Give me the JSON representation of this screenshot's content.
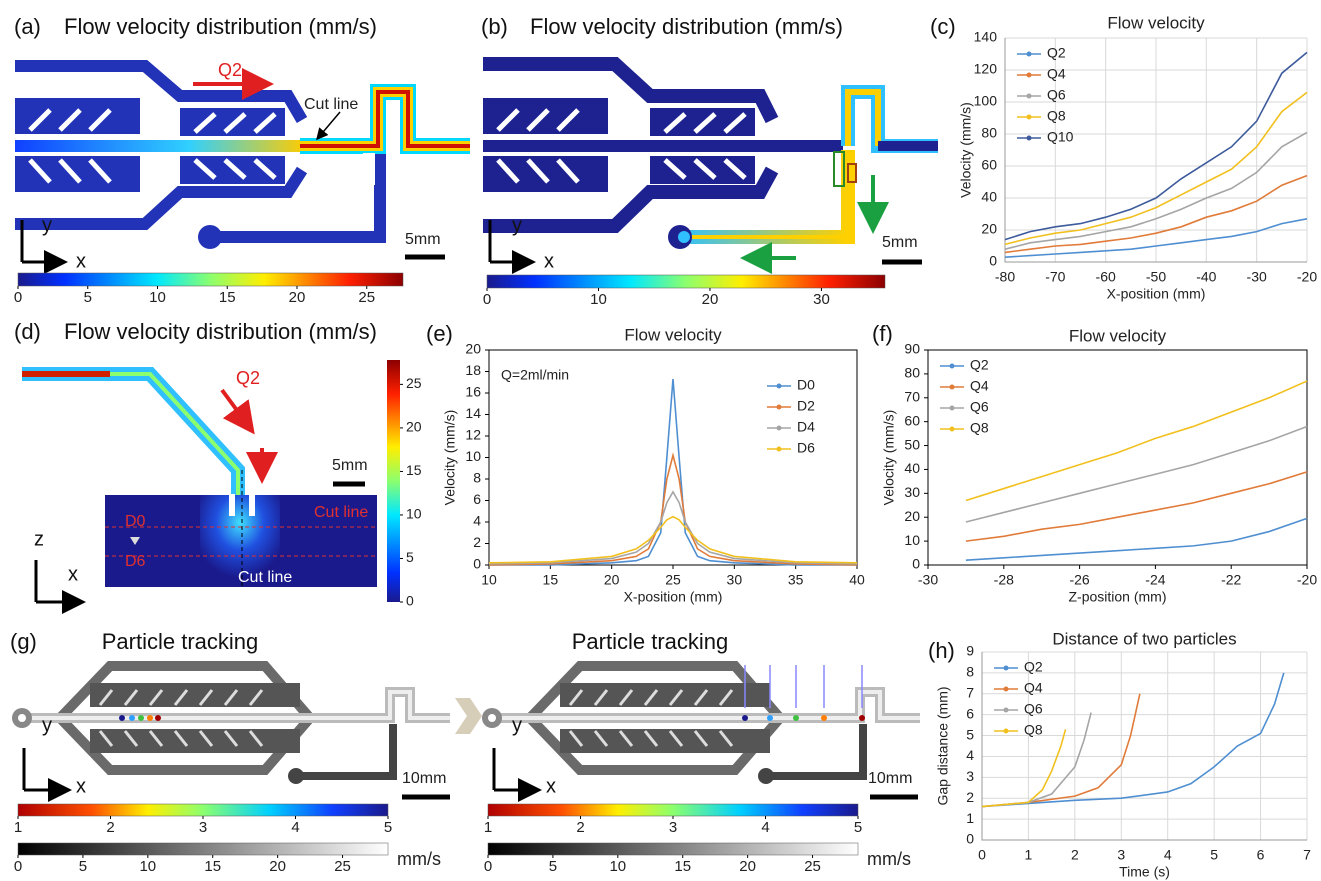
{
  "panels": {
    "a": {
      "label": "(a)",
      "title": "Flow velocity distribution (mm/s)",
      "flow": "Q2",
      "cut_line": "Cut line",
      "scale": "5mm",
      "axis_y": "y",
      "axis_x": "x",
      "colorbar": {
        "clim": [
          0,
          27.6
        ],
        "ticks": [
          0,
          5,
          10,
          15,
          20,
          25
        ]
      }
    },
    "b": {
      "label": "(b)",
      "title": "Flow velocity distribution (mm/s)",
      "scale": "5mm",
      "axis_y": "y",
      "axis_x": "x",
      "colorbar": {
        "clim": [
          0,
          35.7
        ],
        "ticks": [
          0,
          10,
          20,
          30
        ]
      }
    },
    "d": {
      "label": "(d)",
      "title": "Flow velocity distribution (mm/s)",
      "flow": "Q2",
      "scale": "5mm",
      "depths": [
        "D0",
        "D6"
      ],
      "cut_lines": [
        "Cut line",
        "Cut line"
      ],
      "axis_z": "z",
      "axis_x": "x",
      "colorbar": {
        "clim": [
          0,
          27.8
        ],
        "ticks": [
          0,
          5,
          10,
          15,
          20,
          25
        ]
      }
    },
    "g": {
      "label": "(g)",
      "views": [
        {
          "title": "Particle tracking",
          "scale": "10mm",
          "axis_y": "y",
          "axis_x": "x",
          "colorbar": {
            "clim": [
              1,
              5
            ],
            "ticks": [
              1,
              2,
              3,
              4,
              5
            ]
          },
          "gray_colorbar": {
            "clim": [
              0,
              28.5
            ],
            "ticks": [
              0,
              5,
              10,
              15,
              20,
              25
            ]
          },
          "unit": "mm/s"
        },
        {
          "title": "Particle tracking",
          "scale": "10mm",
          "axis_y": "y",
          "axis_x": "x",
          "colorbar": {
            "clim": [
              1,
              5
            ],
            "ticks": [
              1,
              2,
              3,
              4,
              5
            ]
          },
          "gray_colorbar": {
            "clim": [
              0,
              28.5
            ],
            "ticks": [
              0,
              5,
              10,
              15,
              20,
              25
            ]
          },
          "unit": "mm/s"
        }
      ]
    }
  },
  "chart_data": [
    {
      "type": "line",
      "label": "(c)",
      "title": "Flow velocity",
      "xlabel": "X-position (mm)",
      "ylabel": "Velocity (mm/s)",
      "xlim": [
        -80,
        -20
      ],
      "ylim": [
        0,
        140
      ],
      "xticks": [
        -80,
        -70,
        -60,
        -50,
        -40,
        -30,
        -20
      ],
      "yticks": [
        0,
        20,
        40,
        60,
        80,
        100,
        120,
        140
      ],
      "grid": true,
      "legend": "upper left",
      "x": [
        -80,
        -75,
        -70,
        -65,
        -60,
        -55,
        -50,
        -45,
        -40,
        -35,
        -30,
        -25,
        -20
      ],
      "series": [
        {
          "name": "Q2",
          "color": "#4f8fd1",
          "values": [
            3,
            4,
            5,
            6,
            7,
            8,
            10,
            12,
            14,
            16,
            19,
            24,
            27
          ]
        },
        {
          "name": "Q4",
          "color": "#e07b39",
          "values": [
            6,
            8,
            10,
            11,
            13,
            15,
            18,
            22,
            28,
            32,
            38,
            48,
            54
          ]
        },
        {
          "name": "Q6",
          "color": "#a5a5a5",
          "values": [
            8,
            12,
            14,
            16,
            19,
            22,
            27,
            33,
            40,
            46,
            56,
            72,
            81
          ]
        },
        {
          "name": "Q8",
          "color": "#f2c01e",
          "values": [
            11,
            15,
            18,
            20,
            24,
            28,
            34,
            42,
            50,
            58,
            72,
            94,
            106
          ]
        },
        {
          "name": "Q10",
          "color": "#3d5b9c",
          "values": [
            14,
            19,
            22,
            24,
            28,
            33,
            40,
            52,
            62,
            72,
            88,
            118,
            131
          ]
        }
      ]
    },
    {
      "type": "line",
      "label": "(e)",
      "title": "Flow velocity",
      "xlabel": "X-position (mm)",
      "ylabel": "Velocity (mm/s)",
      "annotation": "Q=2ml/min",
      "xlim": [
        10,
        40
      ],
      "ylim": [
        0,
        20
      ],
      "xticks": [
        10,
        15,
        20,
        25,
        30,
        35,
        40
      ],
      "yticks": [
        0,
        2,
        4,
        6,
        8,
        10,
        12,
        14,
        16,
        18,
        20
      ],
      "grid": false,
      "legend": "upper right",
      "x": [
        10,
        15,
        20,
        22,
        23,
        24,
        24.5,
        25,
        25.5,
        26,
        27,
        28,
        30,
        35,
        40
      ],
      "series": [
        {
          "name": "D0",
          "color": "#4f8fd1",
          "values": [
            0,
            0,
            0.2,
            0.4,
            0.8,
            3,
            10,
            17.3,
            10,
            3,
            0.8,
            0.4,
            0.2,
            0,
            0
          ]
        },
        {
          "name": "D2",
          "color": "#e07b39",
          "values": [
            0,
            0.1,
            0.4,
            0.8,
            1.5,
            4,
            8,
            10.2,
            8,
            4,
            1.5,
            0.8,
            0.4,
            0.1,
            0
          ]
        },
        {
          "name": "D4",
          "color": "#a5a5a5",
          "values": [
            0.1,
            0.2,
            0.6,
            1.2,
            2,
            4,
            5.8,
            6.8,
            5.8,
            4,
            2,
            1.2,
            0.6,
            0.2,
            0.1
          ]
        },
        {
          "name": "D6",
          "color": "#f2c01e",
          "values": [
            0.2,
            0.3,
            0.8,
            1.5,
            2.3,
            3.5,
            4.2,
            4.5,
            4.2,
            3.5,
            2.3,
            1.5,
            0.8,
            0.3,
            0.2
          ]
        }
      ]
    },
    {
      "type": "line",
      "label": "(f)",
      "title": "Flow velocity",
      "xlabel": "Z-position (mm)",
      "ylabel": "Velocity (mm/s)",
      "xlim": [
        -30,
        -20
      ],
      "ylim": [
        0,
        90
      ],
      "xticks": [
        -30,
        -28,
        -26,
        -24,
        -22,
        -20
      ],
      "yticks": [
        0,
        10,
        20,
        30,
        40,
        50,
        60,
        70,
        80,
        90
      ],
      "grid": false,
      "legend": "upper left",
      "x": [
        -29,
        -28,
        -27,
        -26,
        -25,
        -24,
        -23,
        -22,
        -21,
        -20
      ],
      "series": [
        {
          "name": "Q2",
          "color": "#4f8fd1",
          "values": [
            2,
            3,
            4,
            5,
            6,
            7,
            8,
            10,
            14,
            19.5
          ]
        },
        {
          "name": "Q4",
          "color": "#e07b39",
          "values": [
            10,
            12,
            15,
            17,
            20,
            23,
            26,
            30,
            34,
            39
          ]
        },
        {
          "name": "Q6",
          "color": "#a5a5a5",
          "values": [
            18,
            22,
            26,
            30,
            34,
            38,
            42,
            47,
            52,
            58
          ]
        },
        {
          "name": "Q8",
          "color": "#f2c01e",
          "values": [
            27,
            32,
            37,
            42,
            47,
            53,
            58,
            64,
            70,
            77
          ]
        }
      ]
    },
    {
      "type": "line",
      "label": "(h)",
      "title": "Distance of two particles",
      "xlabel": "Time (s)",
      "ylabel": "Gap distance (mm)",
      "xlim": [
        0,
        7
      ],
      "ylim": [
        0,
        9
      ],
      "xticks": [
        0,
        1,
        2,
        3,
        4,
        5,
        6,
        7
      ],
      "yticks": [
        0,
        1,
        2,
        3,
        4,
        5,
        6,
        7,
        8,
        9
      ],
      "grid": true,
      "legend": "upper left",
      "series": [
        {
          "name": "Q2",
          "color": "#4f8fd1",
          "x": [
            0,
            1,
            2,
            3,
            4,
            4.5,
            5,
            5.5,
            6,
            6.3,
            6.5
          ],
          "values": [
            1.6,
            1.75,
            1.9,
            2.0,
            2.3,
            2.7,
            3.5,
            4.5,
            5.1,
            6.5,
            8
          ]
        },
        {
          "name": "Q4",
          "color": "#e07b39",
          "x": [
            0,
            1,
            2,
            2.5,
            3,
            3.2,
            3.4
          ],
          "values": [
            1.6,
            1.8,
            2.1,
            2.5,
            3.6,
            5,
            7
          ]
        },
        {
          "name": "Q6",
          "color": "#a5a5a5",
          "x": [
            0,
            1,
            1.5,
            2,
            2.2,
            2.35
          ],
          "values": [
            1.6,
            1.8,
            2.2,
            3.5,
            4.8,
            6.1
          ]
        },
        {
          "name": "Q8",
          "color": "#f2c01e",
          "x": [
            0,
            1,
            1.3,
            1.5,
            1.7,
            1.8
          ],
          "values": [
            1.6,
            1.8,
            2.4,
            3.3,
            4.5,
            5.3
          ]
        }
      ]
    }
  ]
}
